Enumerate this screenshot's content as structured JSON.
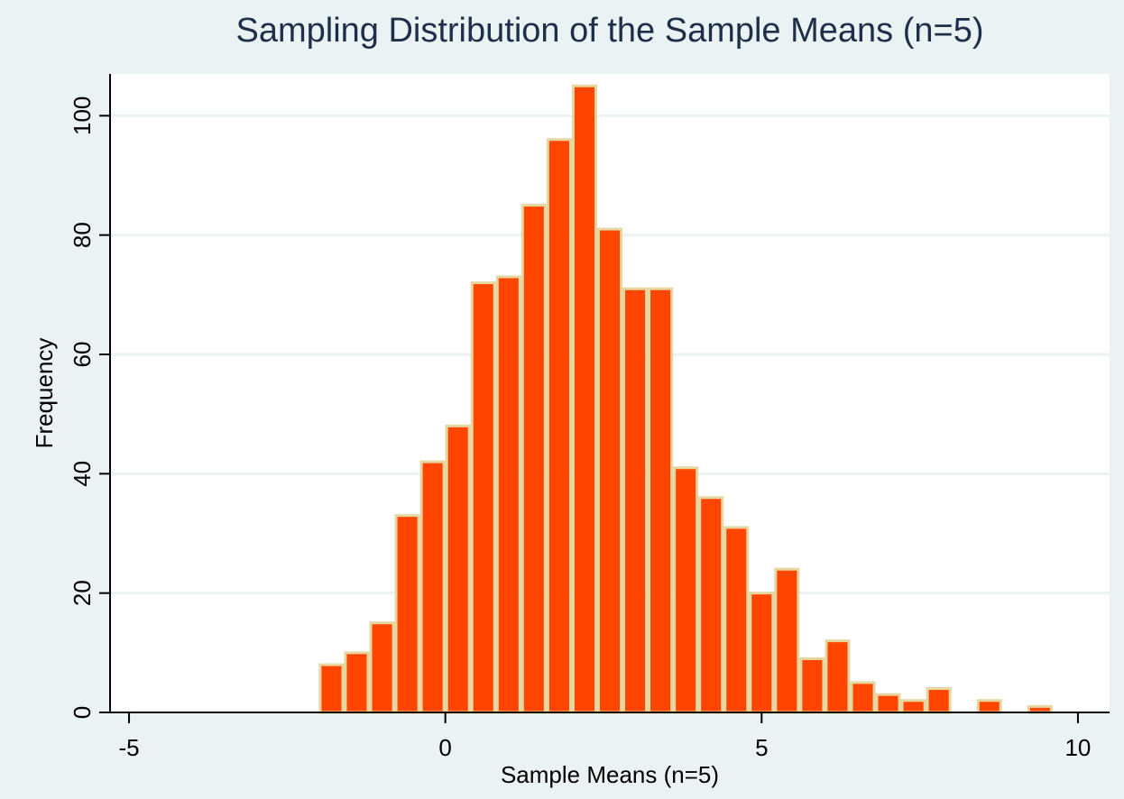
{
  "chart_data": {
    "type": "bar",
    "title": "Sampling Distribution of the Sample Means (n=5)",
    "xlabel": "Sample Means (n=5)",
    "ylabel": "Frequency",
    "xlim": [
      -5.3,
      10.5
    ],
    "ylim": [
      0,
      107
    ],
    "x_ticks": [
      -5,
      0,
      5,
      10
    ],
    "y_ticks": [
      0,
      20,
      40,
      60,
      80,
      100
    ],
    "grid": true,
    "bin_width": 0.4,
    "bins": [
      {
        "x0": -2.0,
        "x1": -1.6,
        "value": 8
      },
      {
        "x0": -1.6,
        "x1": -1.2,
        "value": 10
      },
      {
        "x0": -1.2,
        "x1": -0.8,
        "value": 15
      },
      {
        "x0": -0.8,
        "x1": -0.4,
        "value": 33
      },
      {
        "x0": -0.4,
        "x1": 0.0,
        "value": 42
      },
      {
        "x0": 0.0,
        "x1": 0.4,
        "value": 48
      },
      {
        "x0": 0.4,
        "x1": 0.8,
        "value": 72
      },
      {
        "x0": 0.8,
        "x1": 1.2,
        "value": 73
      },
      {
        "x0": 1.2,
        "x1": 1.6,
        "value": 85
      },
      {
        "x0": 1.6,
        "x1": 2.0,
        "value": 96
      },
      {
        "x0": 2.0,
        "x1": 2.4,
        "value": 105
      },
      {
        "x0": 2.4,
        "x1": 2.8,
        "value": 81
      },
      {
        "x0": 2.8,
        "x1": 3.2,
        "value": 71
      },
      {
        "x0": 3.2,
        "x1": 3.6,
        "value": 71
      },
      {
        "x0": 3.6,
        "x1": 4.0,
        "value": 41
      },
      {
        "x0": 4.0,
        "x1": 4.4,
        "value": 36
      },
      {
        "x0": 4.4,
        "x1": 4.8,
        "value": 31
      },
      {
        "x0": 4.8,
        "x1": 5.2,
        "value": 20
      },
      {
        "x0": 5.2,
        "x1": 5.6,
        "value": 24
      },
      {
        "x0": 5.6,
        "x1": 6.0,
        "value": 9
      },
      {
        "x0": 6.0,
        "x1": 6.4,
        "value": 12
      },
      {
        "x0": 6.4,
        "x1": 6.8,
        "value": 5
      },
      {
        "x0": 6.8,
        "x1": 7.2,
        "value": 3
      },
      {
        "x0": 7.2,
        "x1": 7.6,
        "value": 2
      },
      {
        "x0": 7.6,
        "x1": 8.0,
        "value": 4
      },
      {
        "x0": 8.0,
        "x1": 8.4,
        "value": 0
      },
      {
        "x0": 8.4,
        "x1": 8.8,
        "value": 2
      },
      {
        "x0": 8.8,
        "x1": 9.2,
        "value": 0
      },
      {
        "x0": 9.2,
        "x1": 9.6,
        "value": 1
      }
    ],
    "colors": {
      "bar_fill": "#ff4500",
      "bar_outline": "#e6d6a0",
      "background": "#eaf2f3",
      "plot_background": "#ffffff",
      "grid": "#eaf2f3",
      "title": "#1e2f4a",
      "axis": "#000000"
    }
  }
}
